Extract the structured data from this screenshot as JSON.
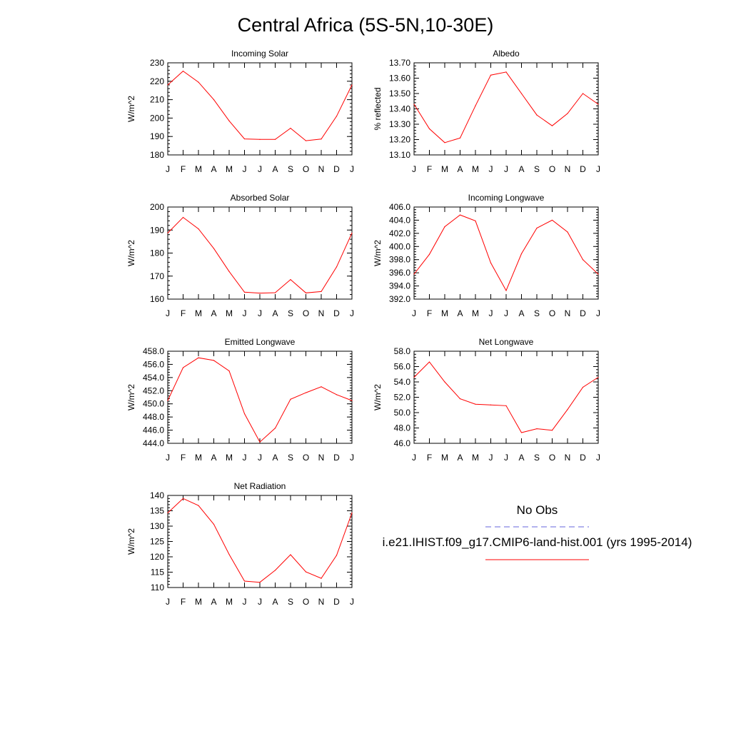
{
  "title": "Central Africa (5S-5N,10-30E)",
  "legend": {
    "obs_label": "No Obs",
    "obs_color": "#6666dd",
    "case_label": "i.e21.IHIST.f09_g17.CMIP6-land-hist.001 (yrs 1995-2014)",
    "case_color": "#ff0000"
  },
  "chart_data": [
    {
      "type": "line",
      "title": "Incoming Solar",
      "ylabel": "W/m^2",
      "categories": [
        "J",
        "F",
        "M",
        "A",
        "M",
        "J",
        "J",
        "A",
        "S",
        "O",
        "N",
        "D",
        "J"
      ],
      "ylim": [
        180,
        230
      ],
      "yticks": [
        180,
        190,
        200,
        210,
        220,
        230
      ],
      "ytick_labels": [
        "180",
        "190",
        "200",
        "210",
        "220",
        "230"
      ],
      "series": [
        {
          "color": "#ff0000",
          "values": [
            218,
            225.5,
            219.5,
            210,
            198.5,
            188.7,
            188.4,
            188.4,
            194.5,
            187.7,
            188.6,
            201,
            218
          ]
        }
      ]
    },
    {
      "type": "line",
      "title": "Albedo",
      "ylabel": "% reflected",
      "categories": [
        "J",
        "F",
        "M",
        "A",
        "M",
        "J",
        "J",
        "A",
        "S",
        "O",
        "N",
        "D",
        "J"
      ],
      "ylim": [
        13.1,
        13.7
      ],
      "yticks": [
        13.1,
        13.2,
        13.3,
        13.4,
        13.5,
        13.6,
        13.7
      ],
      "ytick_labels": [
        "13.10",
        "13.20",
        "13.30",
        "13.40",
        "13.50",
        "13.60",
        "13.70"
      ],
      "series": [
        {
          "color": "#ff0000",
          "values": [
            13.43,
            13.27,
            13.18,
            13.21,
            13.42,
            13.62,
            13.64,
            13.5,
            13.36,
            13.29,
            13.37,
            13.5,
            13.43
          ]
        }
      ]
    },
    {
      "type": "line",
      "title": "Absorbed Solar",
      "ylabel": "W/m^2",
      "categories": [
        "J",
        "F",
        "M",
        "A",
        "M",
        "J",
        "J",
        "A",
        "S",
        "O",
        "N",
        "D",
        "J"
      ],
      "ylim": [
        160,
        200
      ],
      "yticks": [
        160,
        170,
        180,
        190,
        200
      ],
      "ytick_labels": [
        "160",
        "170",
        "180",
        "190",
        "200"
      ],
      "series": [
        {
          "color": "#ff0000",
          "values": [
            188.7,
            195.5,
            190.5,
            182,
            172,
            163,
            162.6,
            162.8,
            168.5,
            162.7,
            163.3,
            174,
            188.7
          ]
        }
      ]
    },
    {
      "type": "line",
      "title": "Incoming Longwave",
      "ylabel": "W/m^2",
      "categories": [
        "J",
        "F",
        "M",
        "A",
        "M",
        "J",
        "J",
        "A",
        "S",
        "O",
        "N",
        "D",
        "J"
      ],
      "ylim": [
        392,
        406
      ],
      "yticks": [
        392,
        394,
        396,
        398,
        400,
        402,
        404,
        406
      ],
      "ytick_labels": [
        "392.0",
        "394.0",
        "396.0",
        "398.0",
        "400.0",
        "402.0",
        "404.0",
        "406.0"
      ],
      "series": [
        {
          "color": "#ff0000",
          "values": [
            395.8,
            398.8,
            403.0,
            404.8,
            403.9,
            397.5,
            393.3,
            398.9,
            402.8,
            404.0,
            402.2,
            398.0,
            395.8
          ]
        }
      ]
    },
    {
      "type": "line",
      "title": "Emitted Longwave",
      "ylabel": "W/m^2",
      "categories": [
        "J",
        "F",
        "M",
        "A",
        "M",
        "J",
        "J",
        "A",
        "S",
        "O",
        "N",
        "D",
        "J"
      ],
      "ylim": [
        444,
        458
      ],
      "yticks": [
        444,
        446,
        448,
        450,
        452,
        454,
        456,
        458
      ],
      "ytick_labels": [
        "444.0",
        "446.0",
        "448.0",
        "450.0",
        "452.0",
        "454.0",
        "456.0",
        "458.0"
      ],
      "series": [
        {
          "color": "#ff0000",
          "values": [
            450.5,
            455.5,
            457.0,
            456.6,
            455.0,
            448.5,
            444.2,
            446.3,
            450.7,
            451.7,
            452.6,
            451.4,
            450.5
          ]
        }
      ]
    },
    {
      "type": "line",
      "title": "Net Longwave",
      "ylabel": "W/m^2",
      "categories": [
        "J",
        "F",
        "M",
        "A",
        "M",
        "J",
        "J",
        "A",
        "S",
        "O",
        "N",
        "D",
        "J"
      ],
      "ylim": [
        46,
        58
      ],
      "yticks": [
        46,
        48,
        50,
        52,
        54,
        56,
        58
      ],
      "ytick_labels": [
        "46.0",
        "48.0",
        "50.0",
        "52.0",
        "54.0",
        "56.0",
        "58.0"
      ],
      "series": [
        {
          "color": "#ff0000",
          "values": [
            54.6,
            56.6,
            54.0,
            51.8,
            51.1,
            51.0,
            50.9,
            47.4,
            47.9,
            47.7,
            50.4,
            53.3,
            54.6
          ]
        }
      ]
    },
    {
      "type": "line",
      "title": "Net Radiation",
      "ylabel": "W/m^2",
      "categories": [
        "J",
        "F",
        "M",
        "A",
        "M",
        "J",
        "J",
        "A",
        "S",
        "O",
        "N",
        "D",
        "J"
      ],
      "ylim": [
        110,
        140
      ],
      "yticks": [
        110,
        115,
        120,
        125,
        130,
        135,
        140
      ],
      "ytick_labels": [
        "110",
        "115",
        "120",
        "125",
        "130",
        "135",
        "140"
      ],
      "series": [
        {
          "color": "#ff0000",
          "values": [
            134.3,
            139.0,
            136.7,
            130.6,
            120.8,
            112.1,
            111.7,
            115.6,
            120.7,
            115.1,
            113.0,
            120.5,
            134.3
          ]
        }
      ]
    }
  ]
}
